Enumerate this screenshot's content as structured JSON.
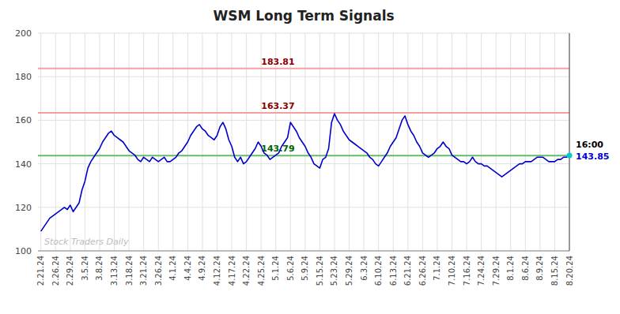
{
  "chart_data": {
    "type": "line",
    "title": "WSM Long Term Signals",
    "watermark": "Stock Traders Daily",
    "watermark_color": "#bbbbbb",
    "color": "#0000cc",
    "grid": true,
    "ylim": [
      100,
      200
    ],
    "yticks": [
      100,
      120,
      140,
      160,
      180,
      200
    ],
    "categories": [
      "2.21.24",
      null,
      null,
      null,
      null,
      "2.26.24",
      null,
      null,
      null,
      null,
      "2.29.24",
      null,
      null,
      null,
      null,
      "3.5.24",
      null,
      null,
      null,
      null,
      "3.8.24",
      null,
      null,
      null,
      null,
      "3.13.24",
      null,
      null,
      null,
      null,
      "3.18.24",
      null,
      null,
      null,
      null,
      "3.21.24",
      null,
      null,
      null,
      null,
      "3.26.24",
      null,
      null,
      null,
      null,
      "4.1.24",
      null,
      null,
      null,
      null,
      "4.4.24",
      null,
      null,
      null,
      null,
      "4.9.24",
      null,
      null,
      null,
      null,
      "4.12.24",
      null,
      null,
      null,
      null,
      "4.17.24",
      null,
      null,
      null,
      null,
      "4.22.24",
      null,
      null,
      null,
      null,
      "4.25.24",
      null,
      null,
      null,
      null,
      "5.1.24",
      null,
      null,
      null,
      null,
      "5.6.24",
      null,
      null,
      null,
      null,
      "5.9.24",
      null,
      null,
      null,
      null,
      "5.15.24",
      null,
      null,
      null,
      null,
      "5.23.24",
      null,
      null,
      null,
      null,
      "5.29.24",
      null,
      null,
      null,
      null,
      "6.3.24",
      null,
      null,
      null,
      null,
      "6.10.24",
      null,
      null,
      null,
      null,
      "6.13.24",
      null,
      null,
      null,
      null,
      "6.21.24",
      null,
      null,
      null,
      null,
      "6.26.24",
      null,
      null,
      null,
      null,
      "7.1.24",
      null,
      null,
      null,
      null,
      "7.10.24",
      null,
      null,
      null,
      null,
      "7.16.24",
      null,
      null,
      null,
      null,
      "7.24.24",
      null,
      null,
      null,
      null,
      "7.29.24",
      null,
      null,
      null,
      null,
      "8.1.24",
      null,
      null,
      null,
      null,
      "8.6.24",
      null,
      null,
      null,
      null,
      "8.9.24",
      null,
      null,
      null,
      null,
      "8.15.24",
      null,
      null,
      null,
      null,
      "8.20.24"
    ],
    "values": [
      109,
      111,
      113,
      115,
      116,
      117,
      118,
      119,
      120,
      119,
      121,
      118,
      120,
      122,
      128,
      132,
      138,
      141,
      143,
      145,
      147,
      150,
      152,
      154,
      155,
      153,
      152,
      151,
      150,
      148,
      146,
      145,
      144,
      142,
      141,
      143,
      142,
      141,
      143,
      142,
      141,
      142,
      143,
      141,
      141,
      142,
      143,
      145,
      146,
      148,
      150,
      153,
      155,
      157,
      158,
      156,
      155,
      153,
      152,
      151,
      153,
      157,
      159,
      156,
      151,
      148,
      143,
      141,
      143,
      140,
      141,
      143,
      145,
      147,
      150,
      148,
      145,
      144,
      142,
      143,
      144,
      145,
      148,
      150,
      152,
      159,
      157,
      155,
      152,
      150,
      148,
      145,
      143,
      140,
      139,
      138,
      142,
      143,
      147,
      159,
      163,
      160,
      158,
      155,
      153,
      151,
      150,
      149,
      148,
      147,
      146,
      145,
      143,
      142,
      140,
      139,
      141,
      143,
      145,
      148,
      150,
      152,
      156,
      160,
      162,
      158,
      155,
      153,
      150,
      148,
      145,
      144,
      143,
      144,
      145,
      147,
      148,
      150,
      148,
      147,
      144,
      143,
      142,
      141,
      141,
      140,
      141,
      143,
      141,
      140,
      140,
      139,
      139,
      138,
      137,
      136,
      135,
      134,
      135,
      136,
      137,
      138,
      139,
      140,
      140,
      141,
      141,
      141,
      142,
      143,
      143,
      143,
      142,
      141,
      141,
      141,
      142,
      142,
      143,
      143,
      143.85
    ],
    "reference_lines": [
      {
        "value": 183.81,
        "label": "183.81",
        "color": "#f5a0a0",
        "label_color": "#880000"
      },
      {
        "value": 163.37,
        "label": "163.37",
        "color": "#f5a0a0",
        "label_color": "#880000"
      },
      {
        "value": 143.79,
        "label": "143.79",
        "color": "#66bb66",
        "label_color": "#006600"
      }
    ],
    "last_point": {
      "time_label": "16:00",
      "value": 143.85,
      "color": "#0000cc",
      "dot_color": "#00cccc"
    }
  }
}
